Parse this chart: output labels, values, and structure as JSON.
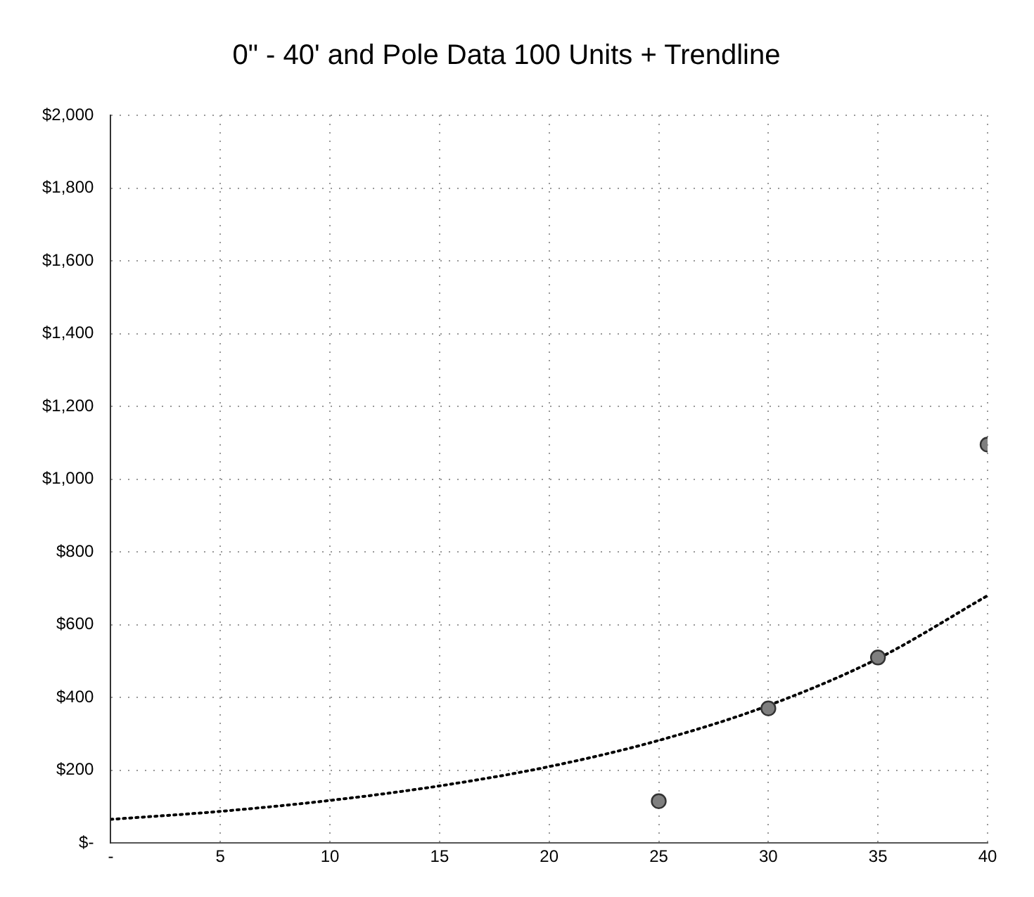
{
  "chart_data": {
    "type": "scatter",
    "title": "0\" - 40' and Pole Data 100 Units + Trendline",
    "series": [
      {
        "color": "#7f7f7f",
        "marker": "circle",
        "x": [
          25,
          30,
          35,
          40
        ],
        "values": [
          115,
          370,
          510,
          1095
        ]
      },
      {
        "type": "line",
        "color": "#000000",
        "line_style": "dotted",
        "marker": "none",
        "x": [
          0,
          5,
          10,
          15,
          20,
          25,
          30,
          35,
          40
        ],
        "values": [
          65,
          87,
          117,
          157,
          210,
          282,
          378,
          507,
          680
        ]
      }
    ],
    "xlim": [
      0,
      40
    ],
    "xticks": [
      {
        "value": 0,
        "label": "-"
      },
      5,
      10,
      15,
      20,
      25,
      30,
      35,
      40
    ],
    "ylim": [
      0,
      2000
    ],
    "yticks": [
      {
        "value": 0,
        "label": "$-"
      },
      {
        "value": 200,
        "label": "$200"
      },
      {
        "value": 400,
        "label": "$400"
      },
      {
        "value": 600,
        "label": "$600"
      },
      {
        "value": 800,
        "label": "$800"
      },
      {
        "value": 1000,
        "label": "$1,000"
      },
      {
        "value": 1200,
        "label": "$1,200"
      },
      {
        "value": 1400,
        "label": "$1,400"
      },
      {
        "value": 1600,
        "label": "$1,600"
      },
      {
        "value": 1800,
        "label": "$1,800"
      },
      {
        "value": 2000,
        "label": "$2,000"
      }
    ],
    "grid": true,
    "legend": false
  }
}
